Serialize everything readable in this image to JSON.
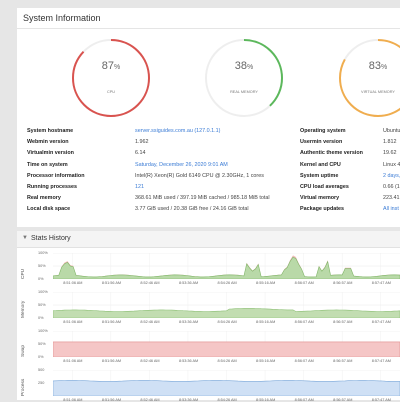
{
  "system_info": {
    "title": "System Information",
    "gauges": [
      {
        "percent": "87",
        "unit": "%",
        "label": "CPU",
        "value": 87,
        "color": "#d9534f"
      },
      {
        "percent": "38",
        "unit": "%",
        "label": "REAL MEMORY",
        "value": 38,
        "color": "#5cb85c"
      },
      {
        "percent": "83",
        "unit": "%",
        "label": "VIRTUAL MEMORY",
        "value": 83,
        "color": "#f0ad4e"
      }
    ],
    "left_rows": [
      {
        "label": "System hostname",
        "value": "server.ssiguides.com.au (127.0.1.1)",
        "link": true
      },
      {
        "label": "Webmin version",
        "value": "1.962",
        "link": false
      },
      {
        "label": "Virtualmin version",
        "value": "6.14",
        "link": false
      },
      {
        "label": "Time on system",
        "value": "Saturday, December 26, 2020 9:01 AM",
        "link": true
      },
      {
        "label": "Processor information",
        "value": "Intel(R) Xeon(R) Gold 6149 CPU @ 2.30GHz, 1 cores",
        "link": false
      },
      {
        "label": "Running processes",
        "value": "121",
        "link": true
      },
      {
        "label": "Real memory",
        "value": "368.61 MiB used / 397.19 MiB cached / 985.18 MiB total",
        "link": false
      },
      {
        "label": "Local disk space",
        "value": "3.77 GiB used / 20.38 GiB free / 24.16 GiB total",
        "link": false
      }
    ],
    "right_rows": [
      {
        "label": "Operating system",
        "value": "Ubuntu",
        "link": false
      },
      {
        "label": "Usermin version",
        "value": "1.812",
        "link": false
      },
      {
        "label": "Authentic theme version",
        "value": "19.62",
        "link": false
      },
      {
        "label": "Kernel and CPU",
        "value": "Linux 4",
        "link": false
      },
      {
        "label": "System uptime",
        "value": "2 days,",
        "link": true
      },
      {
        "label": "CPU load averages",
        "value": "0.66 (1",
        "link": false
      },
      {
        "label": "Virtual memory",
        "value": "223.41",
        "link": false
      },
      {
        "label": "Package updates",
        "value": "All inst",
        "link": true
      }
    ]
  },
  "stats_history": {
    "title": "Stats History",
    "caret": "▼",
    "charts": [
      {
        "name": "CPU",
        "y_labels": [
          "100%",
          "50%",
          "0%"
        ],
        "fill": "#b9d9a8",
        "stroke": "#7fb86a",
        "overlay": "#f4b9b9",
        "kind": "cpu"
      },
      {
        "name": "Memory",
        "y_labels": [
          "100%",
          "50%",
          "0%"
        ],
        "fill": "#c2ddb1",
        "stroke": "#8cbf74",
        "kind": "mem"
      },
      {
        "name": "Swap",
        "y_labels": [
          "100%",
          "50%",
          "0%"
        ],
        "fill": "#f5c6c6",
        "stroke": "#e08c8c",
        "kind": "swap"
      },
      {
        "name": "Process",
        "y_labels": [
          "500",
          "250"
        ],
        "fill": "#cfe0f5",
        "stroke": "#7aa7d9",
        "kind": "proc"
      }
    ],
    "time_ticks": [
      "8:51:06 AM",
      "8:51:56 AM",
      "8:52:46 AM",
      "8:53:36 AM",
      "8:54:26 AM",
      "8:55:16 AM",
      "8:56:07 AM",
      "8:56:57 AM",
      "8:57:47 AM"
    ]
  }
}
